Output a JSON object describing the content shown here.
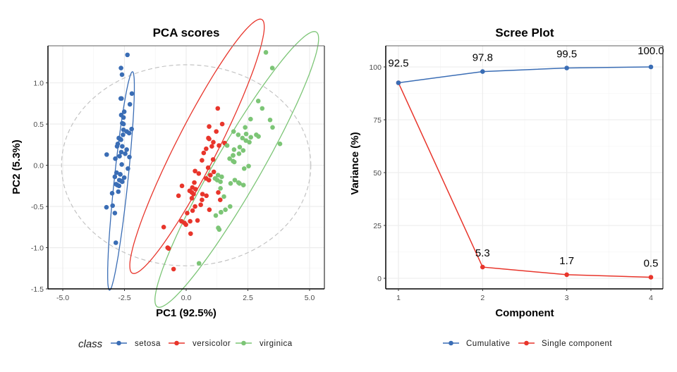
{
  "colors": {
    "setosa": "#3A6DB5",
    "versicolor": "#E8352B",
    "virginica": "#7CC576",
    "cumulative": "#3A6DB5",
    "single": "#E8352B",
    "grid": "#ebebeb",
    "circle": "#bfbfbf"
  },
  "chart_data": [
    {
      "type": "scatter",
      "title": "PCA scores",
      "xlabel": "PC1 (92.5%)",
      "ylabel": "PC2 (5.3%)",
      "xlim": [
        -5.6,
        5.6
      ],
      "ylim": [
        -1.5,
        1.45
      ],
      "xticks": [
        -5.0,
        -2.5,
        0.0,
        2.5,
        5.0
      ],
      "xtick_labels": [
        "-5.0",
        "-2.5",
        "0.0",
        "2.5",
        "5.0"
      ],
      "yticks": [
        -1.5,
        -1.0,
        -0.5,
        0.0,
        0.5,
        1.0
      ],
      "ytick_labels": [
        "-1.5",
        "-1.0",
        "-0.5",
        "0.0",
        "0.5",
        "1.0"
      ],
      "grid": true,
      "legend": {
        "title": "class",
        "position": "bottom",
        "entries": [
          "setosa",
          "versicolor",
          "virginica"
        ]
      },
      "reference_circle": {
        "center": [
          0,
          0
        ],
        "radius_x": 5.05,
        "radius_y": 1.22,
        "style": "dashed"
      },
      "series": [
        {
          "name": "setosa",
          "points": [
            [
              -2.68,
              0.32
            ],
            [
              -2.71,
              -0.18
            ],
            [
              -2.89,
              -0.14
            ],
            [
              -2.75,
              -0.32
            ],
            [
              -2.73,
              0.33
            ],
            [
              -2.28,
              0.74
            ],
            [
              -2.82,
              -0.09
            ],
            [
              -2.63,
              0.16
            ],
            [
              -2.89,
              -0.58
            ],
            [
              -2.67,
              -0.11
            ],
            [
              -2.51,
              0.65
            ],
            [
              -2.61,
              0.01
            ],
            [
              -2.79,
              -0.24
            ],
            [
              -3.23,
              -0.51
            ],
            [
              -2.64,
              1.18
            ],
            [
              -2.38,
              1.34
            ],
            [
              -2.62,
              0.81
            ],
            [
              -2.65,
              0.31
            ],
            [
              -2.2,
              0.87
            ],
            [
              -2.59,
              0.51
            ],
            [
              -2.31,
              0.39
            ],
            [
              -2.54,
              0.43
            ],
            [
              -3.22,
              0.13
            ],
            [
              -2.3,
              0.1
            ],
            [
              -2.36,
              -0.04
            ],
            [
              -2.51,
              -0.15
            ],
            [
              -2.47,
              0.14
            ],
            [
              -2.56,
              0.37
            ],
            [
              -2.64,
              0.31
            ],
            [
              -2.63,
              -0.19
            ],
            [
              -2.59,
              -0.2
            ],
            [
              -2.41,
              0.41
            ],
            [
              -2.65,
              0.81
            ],
            [
              -2.6,
              1.1
            ],
            [
              -2.67,
              -0.11
            ],
            [
              -2.87,
              0.08
            ],
            [
              -2.63,
              0.61
            ],
            [
              -2.8,
              0.23
            ],
            [
              -2.98,
              -0.49
            ],
            [
              -2.59,
              0.23
            ],
            [
              -2.77,
              0.26
            ],
            [
              -2.85,
              -0.94
            ],
            [
              -3.0,
              -0.34
            ],
            [
              -2.41,
              0.19
            ],
            [
              -2.21,
              0.44
            ],
            [
              -2.72,
              -0.25
            ],
            [
              -2.54,
              0.5
            ],
            [
              -2.84,
              -0.23
            ],
            [
              -2.54,
              0.58
            ],
            [
              -2.7,
              0.11
            ]
          ],
          "ellipse": {
            "center": [
              -2.64,
              -0.19
            ],
            "rx": 1.35,
            "ry": 0.12,
            "angle_deg": -84
          }
        },
        {
          "name": "versicolor",
          "points": [
            [
              1.28,
              0.69
            ],
            [
              0.93,
              0.32
            ],
            [
              1.46,
              0.5
            ],
            [
              0.18,
              -0.83
            ],
            [
              1.09,
              0.07
            ],
            [
              0.64,
              -0.42
            ],
            [
              1.1,
              0.28
            ],
            [
              -0.75,
              -1.0
            ],
            [
              1.04,
              0.23
            ],
            [
              -0.01,
              -0.72
            ],
            [
              -0.51,
              -1.26
            ],
            [
              0.51,
              -0.1
            ],
            [
              0.26,
              -0.55
            ],
            [
              0.98,
              -0.12
            ],
            [
              -0.17,
              -0.25
            ],
            [
              0.93,
              0.47
            ],
            [
              0.66,
              -0.35
            ],
            [
              0.23,
              -0.33
            ],
            [
              0.94,
              -0.54
            ],
            [
              0.04,
              -0.58
            ],
            [
              1.12,
              -0.08
            ],
            [
              0.36,
              -0.07
            ],
            [
              1.3,
              -0.33
            ],
            [
              0.92,
              -0.18
            ],
            [
              0.71,
              0.15
            ],
            [
              0.9,
              0.33
            ],
            [
              1.33,
              0.24
            ],
            [
              1.56,
              0.27
            ],
            [
              0.81,
              -0.16
            ],
            [
              -0.31,
              -0.37
            ],
            [
              -0.07,
              -0.7
            ],
            [
              -0.19,
              -0.68
            ],
            [
              0.14,
              -0.31
            ],
            [
              1.38,
              -0.42
            ],
            [
              0.59,
              -0.48
            ],
            [
              0.81,
              0.2
            ],
            [
              1.22,
              0.41
            ],
            [
              0.82,
              -0.37
            ],
            [
              0.25,
              -0.27
            ],
            [
              0.16,
              -0.68
            ],
            [
              0.46,
              -0.67
            ],
            [
              0.89,
              -0.03
            ],
            [
              0.23,
              -0.4
            ],
            [
              -0.71,
              -1.01
            ],
            [
              0.36,
              -0.5
            ],
            [
              0.33,
              -0.21
            ],
            [
              0.38,
              -0.29
            ],
            [
              0.64,
              0.06
            ],
            [
              -0.91,
              -0.75
            ],
            [
              0.3,
              -0.35
            ]
          ],
          "ellipse": {
            "center": [
              0.44,
              0.23
            ],
            "rx": 1.75,
            "ry": 0.36,
            "angle_deg": -63
          }
        },
        {
          "name": "virginica",
          "points": [
            [
              2.53,
              -0.01
            ],
            [
              1.41,
              -0.57
            ],
            [
              2.62,
              0.34
            ],
            [
              1.97,
              -0.18
            ],
            [
              2.35,
              -0.04
            ],
            [
              3.4,
              0.55
            ],
            [
              0.52,
              -1.19
            ],
            [
              2.93,
              0.35
            ],
            [
              2.32,
              -0.24
            ],
            [
              2.92,
              0.78
            ],
            [
              1.66,
              0.24
            ],
            [
              1.8,
              -0.22
            ],
            [
              2.17,
              0.22
            ],
            [
              1.34,
              -0.78
            ],
            [
              1.59,
              -0.54
            ],
            [
              1.9,
              0.12
            ],
            [
              1.95,
              0.04
            ],
            [
              3.49,
              1.18
            ],
            [
              3.8,
              0.26
            ],
            [
              1.3,
              -0.76
            ],
            [
              2.43,
              0.38
            ],
            [
              1.2,
              -0.61
            ],
            [
              3.5,
              0.46
            ],
            [
              1.39,
              -0.2
            ],
            [
              2.28,
              0.33
            ],
            [
              2.61,
              0.56
            ],
            [
              1.26,
              -0.18
            ],
            [
              1.29,
              -0.12
            ],
            [
              2.12,
              -0.21
            ],
            [
              2.39,
              0.46
            ],
            [
              2.84,
              0.37
            ],
            [
              3.23,
              1.37
            ],
            [
              2.16,
              -0.22
            ],
            [
              1.44,
              -0.14
            ],
            [
              1.78,
              -0.5
            ],
            [
              3.08,
              0.69
            ],
            [
              2.14,
              0.14
            ],
            [
              1.9,
              0.05
            ],
            [
              1.17,
              -0.16
            ],
            [
              2.11,
              0.37
            ],
            [
              2.31,
              0.18
            ],
            [
              1.92,
              0.41
            ],
            [
              1.41,
              -0.57
            ],
            [
              2.56,
              0.28
            ],
            [
              2.42,
              0.3
            ],
            [
              1.94,
              0.19
            ],
            [
              1.53,
              -0.38
            ],
            [
              1.76,
              0.08
            ],
            [
              1.9,
              0.12
            ],
            [
              1.39,
              -0.28
            ]
          ],
          "ellipse": {
            "center": [
              2.05,
              -0.05
            ],
            "rx": 1.95,
            "ry": 0.4,
            "angle_deg": -60
          }
        }
      ]
    },
    {
      "type": "line",
      "title": "Scree Plot",
      "xlabel": "Component",
      "ylabel": "Variance (%)",
      "categories": [
        1,
        2,
        3,
        4
      ],
      "xticks": [
        "1",
        "2",
        "3",
        "4"
      ],
      "ylim": [
        -6,
        110
      ],
      "yticks": [
        0,
        25,
        50,
        75,
        100
      ],
      "ytick_labels": [
        "0",
        "25",
        "50",
        "75",
        "100"
      ],
      "grid": true,
      "legend": {
        "position": "bottom",
        "entries": [
          "Cumulative",
          "Single component"
        ]
      },
      "series": [
        {
          "name": "Cumulative",
          "values": [
            92.5,
            97.8,
            99.5,
            100.0
          ],
          "labels": [
            "92.5",
            "97.8",
            "99.5",
            "100.0"
          ]
        },
        {
          "name": "Single component",
          "values": [
            92.5,
            5.3,
            1.7,
            0.5
          ],
          "labels": [
            "",
            "5.3",
            "1.7",
            "0.5"
          ]
        }
      ]
    }
  ]
}
